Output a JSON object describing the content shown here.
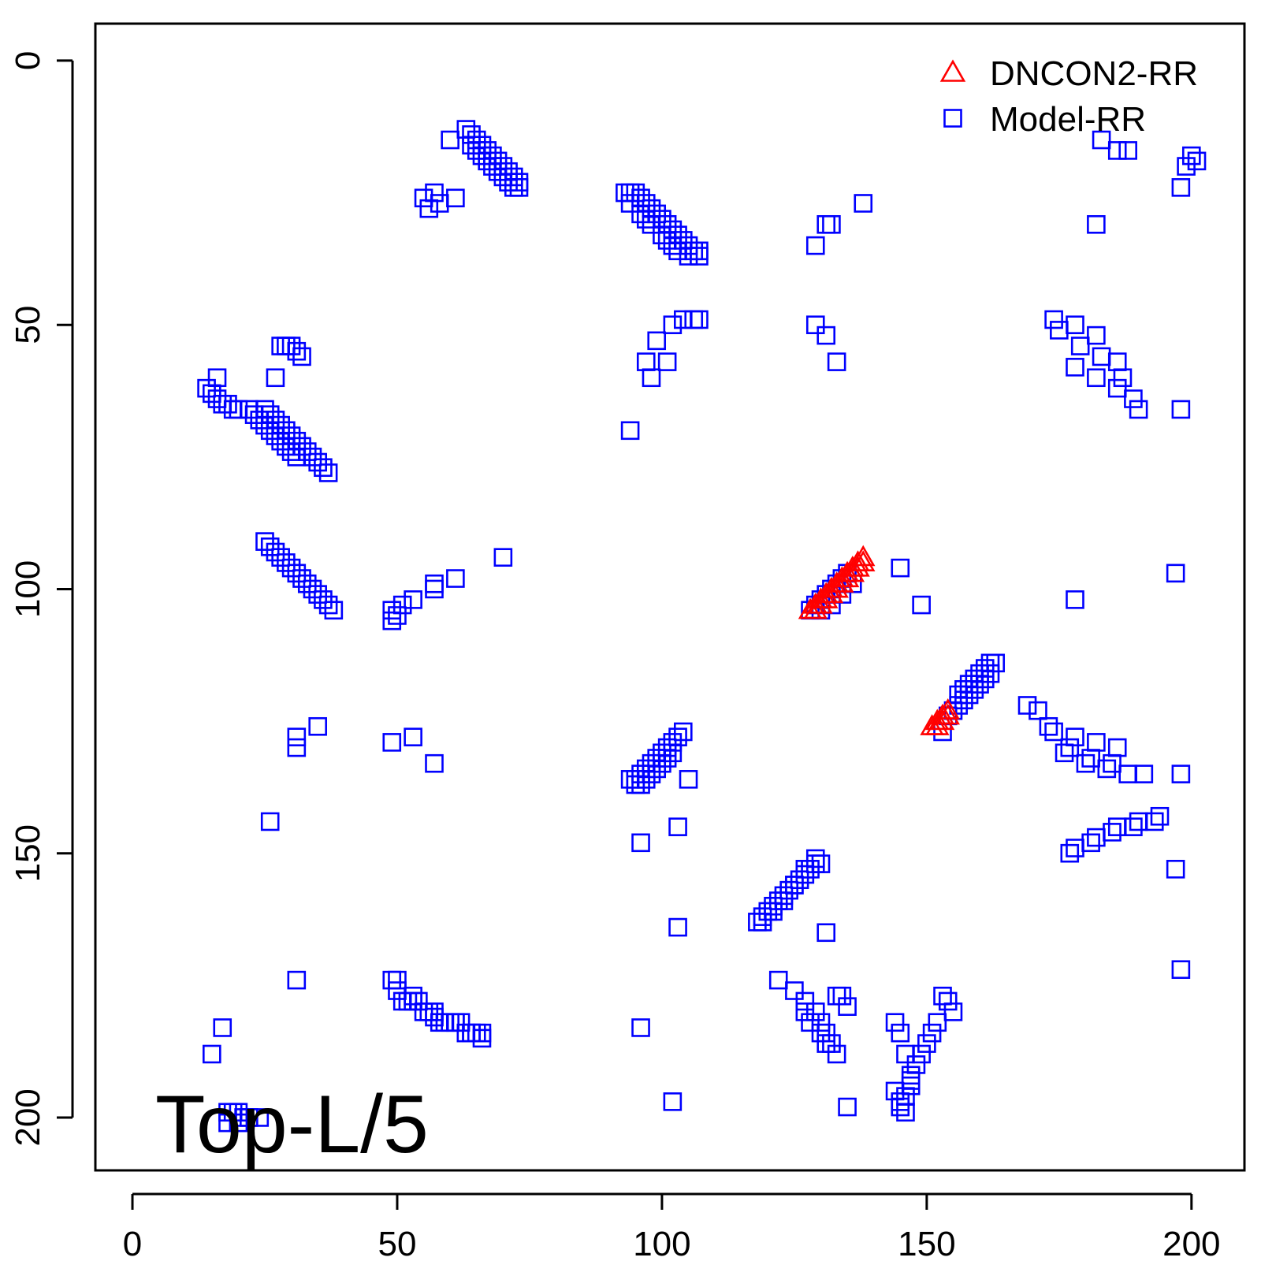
{
  "chart_data": {
    "type": "scatter",
    "title": "",
    "xlabel": "",
    "ylabel": "",
    "xlim": [
      -7,
      210
    ],
    "ylim": [
      -7,
      210
    ],
    "y_inverted": true,
    "x_ticks": [
      0,
      50,
      100,
      150,
      200
    ],
    "y_ticks": [
      0,
      50,
      100,
      150,
      200
    ],
    "x_tick_labels": [
      "0",
      "50",
      "100",
      "150",
      "200"
    ],
    "y_tick_labels": [
      "0",
      "50",
      "100",
      "150",
      "200"
    ],
    "grid": false,
    "legend": {
      "position": "top-right",
      "entries": [
        {
          "label": "DNCON2-RR",
          "marker": "triangle",
          "color": "#ff0000"
        },
        {
          "label": "Model-RR",
          "marker": "square",
          "color": "#0000ff"
        }
      ]
    },
    "annotation": "Top-L/5",
    "series": [
      {
        "name": "DNCON2-RR",
        "marker": "triangle",
        "color": "#ff0000",
        "x": [
          128,
          129,
          129,
          130,
          130,
          131,
          131,
          132,
          132,
          133,
          133,
          134,
          134,
          135,
          135,
          136,
          136,
          137,
          137,
          138,
          138,
          151,
          152,
          152,
          153,
          153,
          154,
          154
        ],
        "y": [
          104,
          103,
          104,
          102,
          103,
          101,
          102,
          100,
          101,
          99,
          100,
          98,
          99,
          97,
          98,
          96,
          97,
          95,
          96,
          94,
          95,
          126,
          125,
          126,
          124,
          125,
          123,
          124
        ]
      },
      {
        "name": "Model-RR",
        "marker": "square",
        "color": "#0000ff",
        "x": [
          63,
          64,
          65,
          66,
          67,
          68,
          69,
          70,
          71,
          72,
          73,
          60,
          64,
          65,
          66,
          67,
          68,
          69,
          70,
          71,
          72,
          73,
          61,
          58,
          57,
          55,
          56,
          93,
          94,
          95,
          96,
          97,
          98,
          99,
          100,
          101,
          102,
          103,
          104,
          105,
          106,
          107,
          94,
          96,
          97,
          98,
          100,
          101,
          102,
          103,
          105,
          107,
          138,
          131,
          132,
          129,
          183,
          186,
          188,
          200,
          201,
          199,
          198,
          182,
          102,
          104,
          106,
          107,
          99,
          97,
          98,
          101,
          129,
          131,
          133,
          94,
          174,
          178,
          182,
          186,
          189,
          175,
          179,
          183,
          187,
          190,
          178,
          182,
          186,
          198,
          14,
          15,
          16,
          17,
          18,
          19,
          20,
          22,
          23,
          24,
          25,
          26,
          27,
          28,
          29,
          30,
          31,
          28,
          29,
          30,
          31,
          32,
          27,
          16,
          25,
          26,
          27,
          28,
          29,
          30,
          31,
          32,
          33,
          34,
          35,
          36,
          37,
          25,
          26,
          27,
          28,
          29,
          30,
          31,
          32,
          33,
          34,
          35,
          36,
          37,
          38,
          49,
          50,
          51,
          53,
          57,
          61,
          57,
          49,
          70,
          145,
          149,
          178,
          197,
          128,
          129,
          130,
          131,
          132,
          133,
          134,
          135,
          130,
          132,
          134,
          136,
          156,
          157,
          158,
          159,
          160,
          161,
          162,
          163,
          154,
          155,
          156,
          157,
          158,
          159,
          160,
          161,
          162,
          153,
          169,
          171,
          174,
          178,
          182,
          186,
          191,
          198,
          173,
          177,
          181,
          185,
          176,
          180,
          184,
          188,
          26,
          31,
          35,
          31,
          49,
          53,
          57,
          95,
          96,
          97,
          98,
          99,
          100,
          101,
          102,
          103,
          104,
          105,
          94,
          95,
          96,
          97,
          98,
          99,
          100,
          101,
          102,
          103,
          96,
          103,
          118,
          119,
          120,
          121,
          122,
          123,
          124,
          125,
          126,
          127,
          128,
          129,
          130,
          131,
          119,
          121,
          123,
          125,
          127,
          129,
          177,
          181,
          185,
          189,
          193,
          197,
          178,
          182,
          186,
          190,
          194,
          198,
          122,
          125,
          127,
          129,
          130,
          131,
          132,
          133,
          134,
          127,
          128,
          130,
          131,
          133,
          153,
          154,
          155,
          152,
          151,
          150,
          149,
          148,
          147,
          146,
          145,
          144,
          145,
          146,
          147,
          144,
          145,
          146,
          147,
          135,
          135,
          102,
          96,
          15,
          17,
          31,
          49,
          50,
          51,
          52,
          53,
          54,
          55,
          56,
          57,
          58,
          59,
          60,
          61,
          62,
          63,
          64,
          65,
          66,
          50,
          53,
          57,
          61,
          64,
          66,
          18,
          19,
          20,
          21,
          22,
          24,
          20,
          18
        ],
        "y": [
          13,
          14,
          15,
          16,
          17,
          18,
          19,
          20,
          21,
          22,
          23,
          15,
          16,
          17,
          18,
          19,
          20,
          21,
          22,
          23,
          24,
          24,
          26,
          27,
          25,
          26,
          28,
          25,
          25,
          25,
          26,
          27,
          28,
          29,
          30,
          31,
          32,
          33,
          34,
          35,
          36,
          36,
          27,
          29,
          30,
          31,
          33,
          34,
          35,
          36,
          37,
          37,
          27,
          31,
          31,
          35,
          15,
          17,
          17,
          18,
          19,
          20,
          24,
          31,
          50,
          49,
          49,
          49,
          53,
          57,
          60,
          57,
          50,
          52,
          57,
          70,
          49,
          50,
          52,
          57,
          64,
          51,
          54,
          56,
          60,
          66,
          58,
          60,
          62,
          66,
          62,
          63,
          64,
          65,
          65,
          66,
          66,
          66,
          67,
          68,
          69,
          70,
          71,
          72,
          73,
          74,
          75,
          54,
          54,
          54,
          55,
          56,
          60,
          60,
          66,
          67,
          68,
          69,
          70,
          71,
          72,
          73,
          74,
          75,
          76,
          77,
          78,
          91,
          92,
          93,
          94,
          95,
          96,
          97,
          98,
          99,
          100,
          101,
          102,
          103,
          104,
          104,
          105,
          103,
          102,
          100,
          98,
          99,
          106,
          94,
          96,
          103,
          102,
          97,
          104,
          103,
          102,
          101,
          100,
          99,
          98,
          97,
          104,
          103,
          101,
          99,
          120,
          119,
          118,
          117,
          116,
          115,
          114,
          114,
          124,
          123,
          122,
          121,
          120,
          119,
          118,
          117,
          116,
          127,
          122,
          123,
          127,
          128,
          129,
          130,
          135,
          135,
          126,
          130,
          132,
          133,
          131,
          133,
          134,
          135,
          144,
          128,
          126,
          130,
          129,
          128,
          133,
          136,
          135,
          134,
          133,
          132,
          131,
          130,
          129,
          128,
          127,
          136,
          136,
          137,
          137,
          136,
          135,
          134,
          133,
          132,
          131,
          145,
          148,
          164,
          163,
          162,
          161,
          160,
          159,
          158,
          157,
          156,
          155,
          154,
          153,
          152,
          152,
          165,
          163,
          161,
          159,
          156,
          153,
          151,
          150,
          148,
          146,
          145,
          144,
          153,
          149,
          147,
          145,
          144,
          143,
          172,
          174,
          176,
          178,
          180,
          182,
          184,
          186,
          188,
          177,
          180,
          182,
          184,
          186,
          177,
          177,
          178,
          180,
          182,
          184,
          186,
          188,
          190,
          194,
          196,
          198,
          182,
          184,
          188,
          192,
          195,
          197,
          199,
          193,
          198,
          179,
          197,
          183,
          188,
          183,
          174,
          174,
          174,
          178,
          178,
          178,
          178,
          180,
          180,
          180,
          182,
          182,
          182,
          182,
          182,
          184,
          184,
          184,
          184,
          176,
          177,
          181,
          182,
          184,
          185,
          199,
          199,
          199,
          200,
          200,
          200,
          201,
          201
        ]
      }
    ]
  }
}
